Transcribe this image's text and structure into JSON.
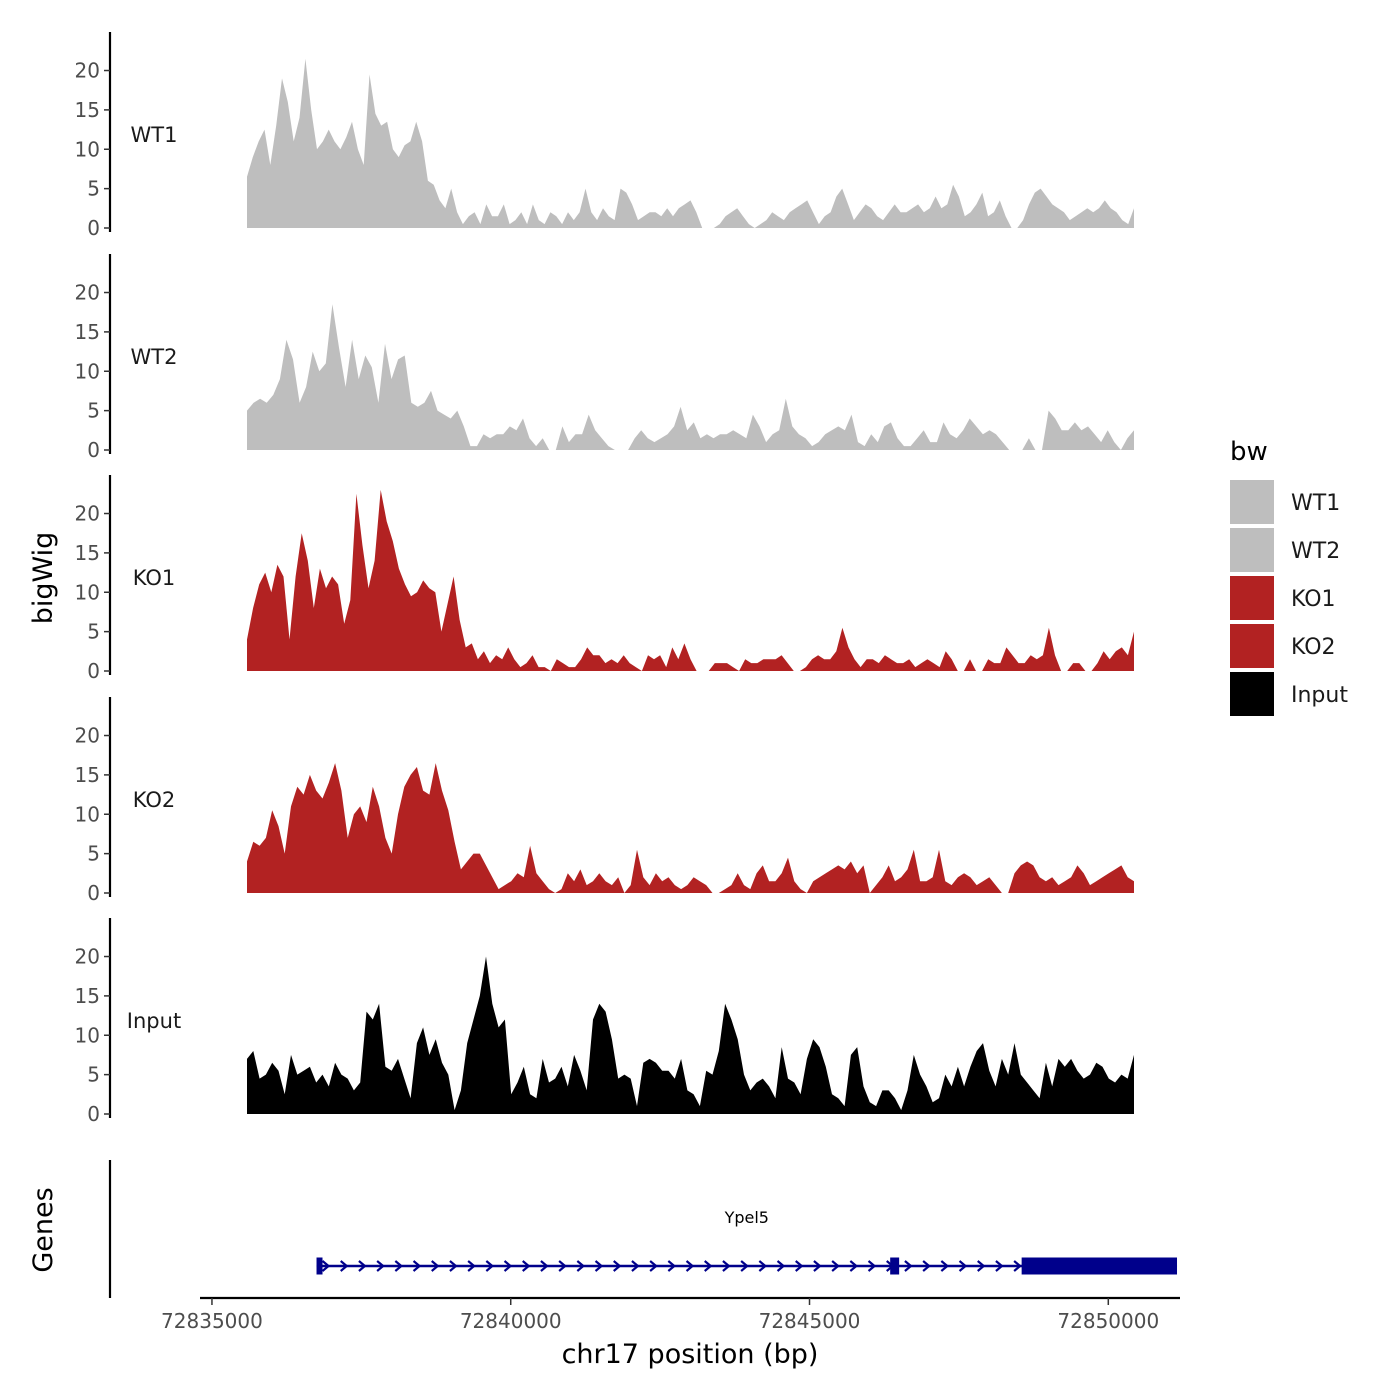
{
  "chart_data": {
    "type": "area",
    "ylabel": "bigWig",
    "xlabel": "chr17 position (bp)",
    "x_range": [
      72834800,
      72851200
    ],
    "x_ticks": [
      72835000,
      72840000,
      72845000,
      72850000
    ],
    "x_tick_labels": [
      "72835000",
      "72840000",
      "72845000",
      "72850000"
    ],
    "ylim": [
      0,
      24
    ],
    "y_ticks": [
      0,
      5,
      10,
      15,
      20
    ],
    "y_tick_labels": [
      "0",
      "5",
      "10",
      "15",
      "20"
    ],
    "tracks": [
      {
        "name": "WT1",
        "label": "WT1",
        "color": "#BEBEBE",
        "values": [
          6.5,
          9,
          11,
          12.5,
          8,
          13,
          19,
          16,
          11,
          14,
          21.5,
          15,
          10,
          11,
          12.5,
          11,
          10,
          11.5,
          13.5,
          10,
          8,
          19.5,
          14.5,
          13,
          13.5,
          10,
          9,
          10.5,
          11,
          13.5,
          11,
          6,
          5.5,
          3.5,
          2.5,
          5,
          2,
          0.5,
          1.5,
          2,
          0.5,
          3,
          1.5,
          1.5,
          3,
          0.5,
          1,
          2,
          0.5,
          3,
          1,
          0.5,
          2,
          1.5,
          0.5,
          2,
          1,
          2,
          5,
          2,
          1,
          2.5,
          1.5,
          1,
          5,
          4.5,
          3,
          1,
          1.5,
          2,
          2,
          1.5,
          2.5,
          1.5,
          2.5,
          3,
          3.5,
          2,
          0,
          0,
          0,
          0.5,
          1.5,
          2,
          2.5,
          1.5,
          0.5,
          0,
          0.5,
          1,
          2,
          1.5,
          1,
          2,
          2.5,
          3,
          3.5,
          2,
          0.5,
          1.5,
          2,
          4,
          5,
          3,
          1,
          2,
          3,
          2.5,
          1.5,
          1,
          2,
          3,
          2,
          2,
          2.5,
          3,
          2,
          2.5,
          4,
          2.5,
          3,
          5.5,
          4,
          1.5,
          2,
          3,
          4.5,
          1.5,
          2,
          3.5,
          1.5,
          0,
          0,
          1,
          3,
          4.5,
          5,
          4,
          3,
          2.5,
          2,
          1,
          1.5,
          2,
          2.5,
          2,
          2.5,
          3.5,
          2.5,
          2,
          1,
          0.5,
          2.5
        ]
      },
      {
        "name": "WT2",
        "label": "WT2",
        "color": "#BEBEBE",
        "values": [
          5,
          6,
          6.5,
          6,
          7,
          9,
          14,
          11.5,
          6,
          8,
          12.5,
          10,
          11,
          18.5,
          13,
          8,
          14,
          9,
          12,
          10.5,
          6,
          13.5,
          9,
          11.5,
          12,
          6,
          5.5,
          6,
          7.5,
          5,
          4.5,
          4,
          5,
          3,
          0.5,
          0.5,
          2,
          1.5,
          2,
          2,
          3,
          2.5,
          4,
          1.5,
          0.5,
          1.5,
          0,
          0,
          3,
          1,
          2,
          2,
          4.5,
          2.5,
          1.5,
          0.5,
          0,
          0,
          0,
          1.5,
          2.5,
          1.5,
          1,
          1.5,
          2,
          3,
          5.5,
          2.5,
          3.5,
          1.5,
          2,
          1.5,
          2,
          2,
          2.5,
          2,
          1.5,
          4.5,
          3,
          1,
          2,
          2.5,
          6.5,
          3,
          2,
          1.5,
          0.5,
          1,
          2,
          2.5,
          3,
          2.5,
          4.5,
          1,
          0.5,
          2,
          1,
          3,
          3.5,
          1.5,
          0.5,
          0.5,
          1.5,
          2.5,
          1,
          1,
          3.5,
          2,
          1.5,
          2.5,
          4,
          3,
          2,
          2.5,
          2,
          1,
          0,
          0,
          0,
          1.5,
          0,
          0,
          5,
          4,
          2.5,
          2.5,
          3.5,
          2.5,
          3,
          2,
          1,
          2.5,
          1,
          0,
          1.5,
          2.5
        ]
      },
      {
        "name": "KO1",
        "label": "KO1",
        "color": "#B22222",
        "values": [
          4,
          8,
          11,
          12.5,
          10,
          13.5,
          12,
          4,
          12,
          17.5,
          14,
          8,
          13,
          10.5,
          12,
          11,
          6,
          9,
          22.5,
          16,
          10.5,
          14,
          23,
          19,
          16.5,
          13,
          11,
          9.5,
          10,
          11.5,
          10.5,
          10,
          5,
          8.5,
          12,
          6.5,
          3,
          3.5,
          1.5,
          2.5,
          1,
          2,
          1.5,
          3,
          1.5,
          0.5,
          1,
          2,
          0.5,
          0.5,
          0,
          1.5,
          1,
          0.5,
          0.5,
          1.5,
          3,
          2,
          2,
          1,
          1.5,
          1,
          2,
          1,
          0.5,
          0,
          2,
          1.5,
          2,
          0.5,
          3,
          1.5,
          3.5,
          1.5,
          0,
          0,
          0,
          1,
          1,
          1,
          0.5,
          0,
          1.5,
          1,
          1,
          1.5,
          1.5,
          1.5,
          2,
          1,
          0,
          0,
          0.5,
          1.5,
          2,
          1.5,
          1.5,
          2.5,
          5.5,
          3,
          1.5,
          0.5,
          1.5,
          1.5,
          1,
          2,
          1.5,
          1,
          1,
          1.5,
          0.5,
          1,
          1.5,
          1,
          0.5,
          2.5,
          1.5,
          0,
          0,
          1.5,
          0,
          0,
          1.5,
          1,
          1,
          3,
          2,
          1,
          1,
          2,
          1.5,
          2,
          5.5,
          2,
          0,
          0,
          1,
          1,
          0,
          0,
          1,
          2.5,
          1.5,
          2.5,
          3,
          2,
          5
        ]
      },
      {
        "name": "KO2",
        "label": "KO2",
        "color": "#B22222",
        "values": [
          4,
          6.5,
          6,
          7,
          10.5,
          8.5,
          5,
          11,
          13.5,
          12.5,
          15,
          13,
          12,
          14,
          16.5,
          13,
          7,
          10,
          11,
          9,
          13.5,
          11,
          7,
          5,
          10,
          13.5,
          15,
          16,
          13,
          12.5,
          16.5,
          13,
          10.5,
          6.5,
          3,
          4,
          5,
          5,
          3.5,
          2,
          0.5,
          1,
          1.5,
          2.5,
          2,
          6,
          2.5,
          1.5,
          0.5,
          0,
          0.5,
          2.5,
          1.5,
          3,
          1,
          1.5,
          2.5,
          1.5,
          1,
          2,
          0,
          1,
          5.5,
          2,
          1,
          2.5,
          1.5,
          2,
          1,
          0.5,
          1,
          2,
          1.5,
          1,
          0,
          0,
          0.5,
          1,
          2.5,
          1,
          0.5,
          2.5,
          3.5,
          1.5,
          1.5,
          2.5,
          4.5,
          1.5,
          0.5,
          0,
          1.5,
          2,
          2.5,
          3,
          3.5,
          3,
          4,
          2.5,
          3.5,
          0,
          1,
          2,
          3.5,
          1.5,
          2,
          3,
          5.5,
          1.5,
          1.5,
          2,
          5.5,
          1.5,
          1,
          2,
          2.5,
          2,
          1,
          1.5,
          2,
          1,
          0,
          0,
          2.5,
          3.5,
          4,
          3.5,
          2,
          1.5,
          2,
          1,
          1.5,
          2,
          3.5,
          2.5,
          1,
          1.5,
          2,
          2.5,
          3,
          3.5,
          2,
          1.5
        ]
      },
      {
        "name": "Input",
        "label": "Input",
        "color": "#000000",
        "values": [
          7,
          8,
          4.5,
          5,
          6.5,
          5.5,
          2.5,
          7.5,
          5,
          5.5,
          6,
          4,
          5,
          3.5,
          6.5,
          5,
          4.5,
          3,
          4,
          13,
          12,
          14,
          6,
          5.5,
          7,
          4.5,
          2,
          9,
          11,
          7.5,
          9.5,
          6.5,
          5,
          0.5,
          3,
          9,
          12,
          15,
          20,
          14,
          11,
          12,
          2.5,
          4,
          6,
          2.5,
          2,
          7,
          4,
          4.5,
          6,
          3.5,
          7.5,
          5.5,
          3,
          12,
          14,
          13,
          9.5,
          4.5,
          5,
          4.5,
          1,
          6.5,
          7,
          6.5,
          5.5,
          5.5,
          4.5,
          7,
          3,
          2.5,
          1,
          5.5,
          5,
          8,
          14,
          12,
          9.5,
          5,
          3,
          4,
          4.5,
          3.5,
          2,
          8.5,
          4.5,
          4,
          2.5,
          7,
          9.5,
          8.5,
          6,
          2.5,
          2,
          1,
          7.5,
          8.5,
          3.5,
          1.5,
          1,
          3,
          3,
          2,
          0.5,
          3,
          7.5,
          5,
          3.5,
          1.5,
          2,
          5,
          3.5,
          6,
          3.5,
          6,
          8,
          9,
          5.5,
          3.5,
          7,
          5,
          9,
          5,
          4,
          3,
          2,
          6.5,
          3.5,
          7,
          6,
          7,
          5.5,
          4.5,
          5,
          6.5,
          6,
          4.5,
          4,
          5,
          4.5,
          7.5
        ]
      }
    ],
    "legend": {
      "title": "bw",
      "position": "right",
      "entries": [
        {
          "label": "WT1",
          "color": "#BEBEBE"
        },
        {
          "label": "WT2",
          "color": "#BEBEBE"
        },
        {
          "label": "KO1",
          "color": "#B22222"
        },
        {
          "label": "KO2",
          "color": "#B22222"
        },
        {
          "label": "Input",
          "color": "#000000"
        }
      ]
    },
    "genes": {
      "track_label": "Genes",
      "color": "#00008B",
      "items": [
        {
          "name": "Ypel5",
          "start": 72836750,
          "end": 72851150,
          "strand": "+",
          "exons": [
            [
              72836750,
              72836850
            ],
            [
              72846350,
              72846500
            ],
            [
              72848550,
              72851150
            ]
          ]
        }
      ]
    }
  }
}
